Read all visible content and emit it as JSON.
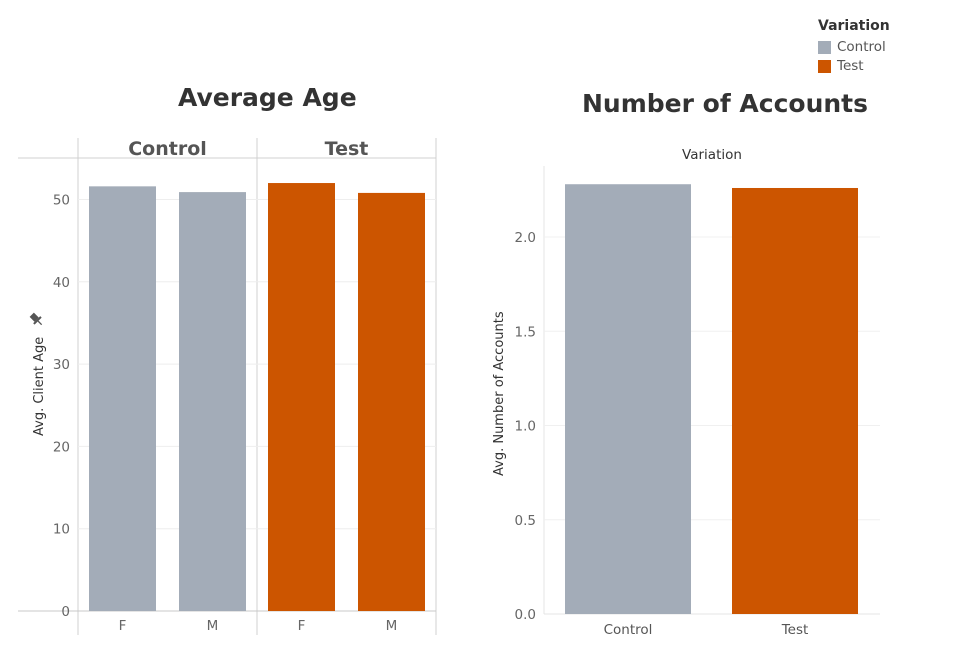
{
  "legend": {
    "title": "Variation",
    "items": [
      {
        "label": "Control",
        "color": "#a3acb8"
      },
      {
        "label": "Test",
        "color": "#cc5500"
      }
    ]
  },
  "chart_data": [
    {
      "type": "bar",
      "title": "Average Age",
      "ylabel": "Avg. Client Age",
      "ylabel_icon": "pin-icon",
      "ylim": [
        0,
        55
      ],
      "yticks": [
        0,
        10,
        20,
        30,
        40,
        50
      ],
      "groups": [
        "Control",
        "Test"
      ],
      "categories": [
        "F",
        "M"
      ],
      "series": [
        {
          "name": "Control",
          "color": "#a3acb8",
          "values": [
            51.6,
            50.9
          ]
        },
        {
          "name": "Test",
          "color": "#cc5500",
          "values": [
            52.0,
            50.8
          ]
        }
      ]
    },
    {
      "type": "bar",
      "title": "Number of Accounts",
      "header": "Variation",
      "ylabel": "Avg. Number of Accounts",
      "ylim": [
        0,
        2.4
      ],
      "yticks": [
        "0.0",
        "0.5",
        "1.0",
        "1.5",
        "2.0"
      ],
      "categories": [
        "Control",
        "Test"
      ],
      "colors": [
        "#a3acb8",
        "#cc5500"
      ],
      "values": [
        2.28,
        2.26
      ]
    }
  ]
}
